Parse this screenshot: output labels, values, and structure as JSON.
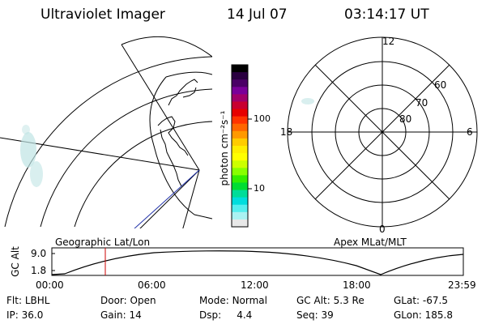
{
  "header": {
    "instrument": "Ultraviolet Imager",
    "date": "14 Jul 07",
    "time": "03:14:17 UT"
  },
  "colorbar": {
    "label": "photon cm⁻²s⁻¹",
    "ticks": [
      "100",
      "10"
    ],
    "colors": [
      "#000000",
      "#2a0040",
      "#4a0066",
      "#7a0099",
      "#a0006a",
      "#c80030",
      "#e60000",
      "#ff3300",
      "#ff6600",
      "#ff9900",
      "#ffcc00",
      "#ffee00",
      "#ffff00",
      "#ccff00",
      "#88ff00",
      "#33ee00",
      "#00dd33",
      "#00dd99",
      "#00dddd",
      "#55eeee",
      "#aaf2f2",
      "#e8e8e8"
    ]
  },
  "polar_plot": {
    "labels": {
      "top": "12",
      "left": "18",
      "right": "6",
      "bottom": "0"
    },
    "rings": [
      "60",
      "70",
      "80"
    ]
  },
  "timeline": {
    "left_title": "Geographic Lat/Lon",
    "right_title": "Apex MLat/MLT",
    "axis_label": "GC Alt",
    "y_ticks": [
      "9.0",
      "1.8"
    ],
    "x_ticks": [
      "00:00",
      "06:00",
      "12:00",
      "18:00",
      "23:59"
    ],
    "marker_color": "#cc0000"
  },
  "status": {
    "flt_label": "Flt:",
    "flt_value": "LBHL",
    "ip_label": "IP:",
    "ip_value": "36.0",
    "door_label": "Door:",
    "door_value": "Open",
    "gain_label": "Gain:",
    "gain_value": "14",
    "mode_label": "Mode:",
    "mode_value": "Normal",
    "dsp_label": "Dsp:",
    "dsp_value": "4.4",
    "gcalt_label": "GC Alt:",
    "gcalt_value": "5.3 Re",
    "seq_label": "Seq:",
    "seq_value": "39",
    "glat_label": "GLat:",
    "glat_value": "-67.5",
    "glon_label": "GLon:",
    "glon_value": "185.8"
  }
}
